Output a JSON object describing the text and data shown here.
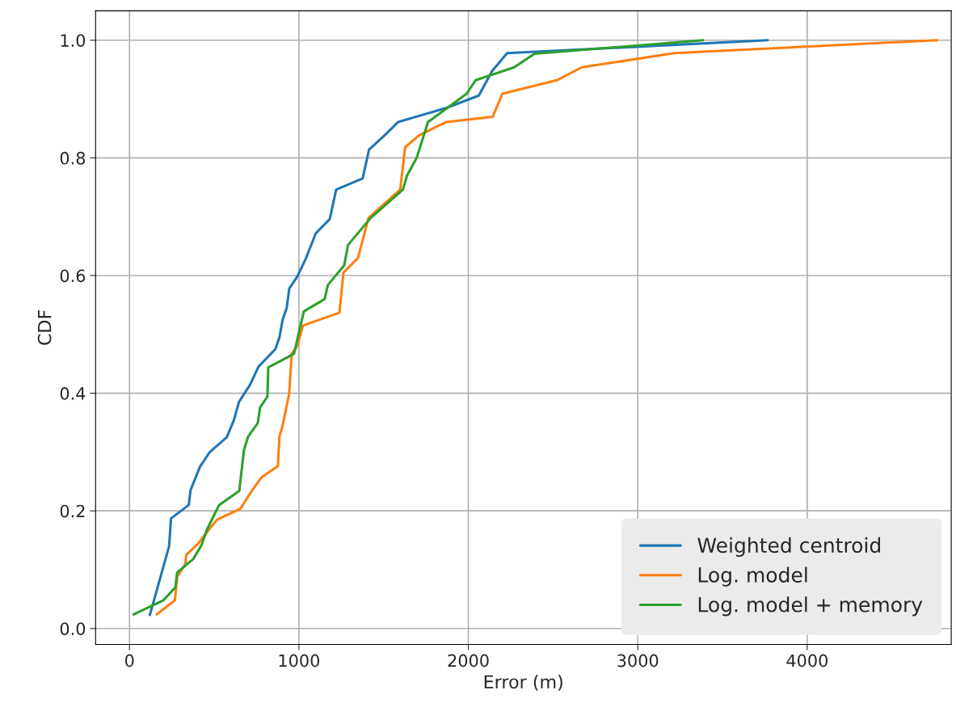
{
  "chart_data": {
    "type": "line",
    "xlabel": "Error (m)",
    "ylabel": "CDF",
    "xlim": [
      -200,
      4850
    ],
    "ylim": [
      -0.027,
      1.05
    ],
    "xticks": [
      0,
      1000,
      2000,
      3000,
      4000
    ],
    "yticks": [
      {
        "value": 0,
        "label": "0.0"
      },
      {
        "value": 0.2,
        "label": "0.2"
      },
      {
        "value": 0.4,
        "label": "0.4"
      },
      {
        "value": 0.6,
        "label": "0.6"
      },
      {
        "value": 0.8,
        "label": "0.8"
      },
      {
        "value": 1,
        "label": "1.0"
      }
    ],
    "grid": true,
    "legend": "bottom right",
    "marker": "none",
    "line_style": "solid",
    "series": [
      {
        "name": "Weighted centroid",
        "color": "#1f77b4",
        "x": [
          120,
          234,
          245,
          350,
          360,
          416,
          474,
          574,
          617,
          646,
          713,
          761,
          861,
          885,
          904,
          928,
          943,
          990,
          1038,
          1067,
          1100,
          1182,
          1220,
          1376,
          1414,
          1505,
          1586,
          1871,
          2062,
          2139,
          2229,
          3767
        ],
        "values": [
          0.023,
          0.14,
          0.187,
          0.21,
          0.235,
          0.275,
          0.3,
          0.325,
          0.355,
          0.385,
          0.415,
          0.445,
          0.475,
          0.495,
          0.525,
          0.545,
          0.578,
          0.598,
          0.627,
          0.648,
          0.672,
          0.696,
          0.746,
          0.765,
          0.814,
          0.838,
          0.861,
          0.885,
          0.906,
          0.947,
          0.978,
          1.0
        ]
      },
      {
        "name": "Log. model",
        "color": "#ff7f0e",
        "x": [
          161,
          268,
          282,
          330,
          335,
          407,
          474,
          517,
          656,
          722,
          780,
          876,
          885,
          904,
          943,
          957,
          990,
          1024,
          1239,
          1263,
          1349,
          1411,
          1598,
          1627,
          1708,
          1804,
          1871,
          2144,
          2201,
          2522,
          2670,
          3215,
          4767
        ],
        "values": [
          0.024,
          0.048,
          0.088,
          0.11,
          0.125,
          0.145,
          0.17,
          0.185,
          0.204,
          0.234,
          0.257,
          0.276,
          0.326,
          0.345,
          0.4,
          0.467,
          0.48,
          0.515,
          0.537,
          0.605,
          0.63,
          0.698,
          0.746,
          0.818,
          0.838,
          0.852,
          0.861,
          0.87,
          0.909,
          0.932,
          0.954,
          0.978,
          1.0
        ]
      },
      {
        "name": "Log. model + memory",
        "color": "#2ca02c",
        "x": [
          24,
          200,
          271,
          281,
          376,
          424,
          457,
          529,
          648,
          676,
          700,
          757,
          771,
          814,
          819,
          971,
          1029,
          1152,
          1171,
          1267,
          1290,
          1424,
          1614,
          1638,
          1695,
          1762,
          1990,
          2043,
          2271,
          2390,
          3386
        ],
        "values": [
          0.024,
          0.048,
          0.07,
          0.095,
          0.118,
          0.141,
          0.168,
          0.21,
          0.234,
          0.304,
          0.326,
          0.349,
          0.376,
          0.394,
          0.444,
          0.467,
          0.539,
          0.56,
          0.584,
          0.617,
          0.652,
          0.698,
          0.746,
          0.77,
          0.8,
          0.861,
          0.909,
          0.932,
          0.954,
          0.977,
          1.0
        ]
      }
    ]
  }
}
